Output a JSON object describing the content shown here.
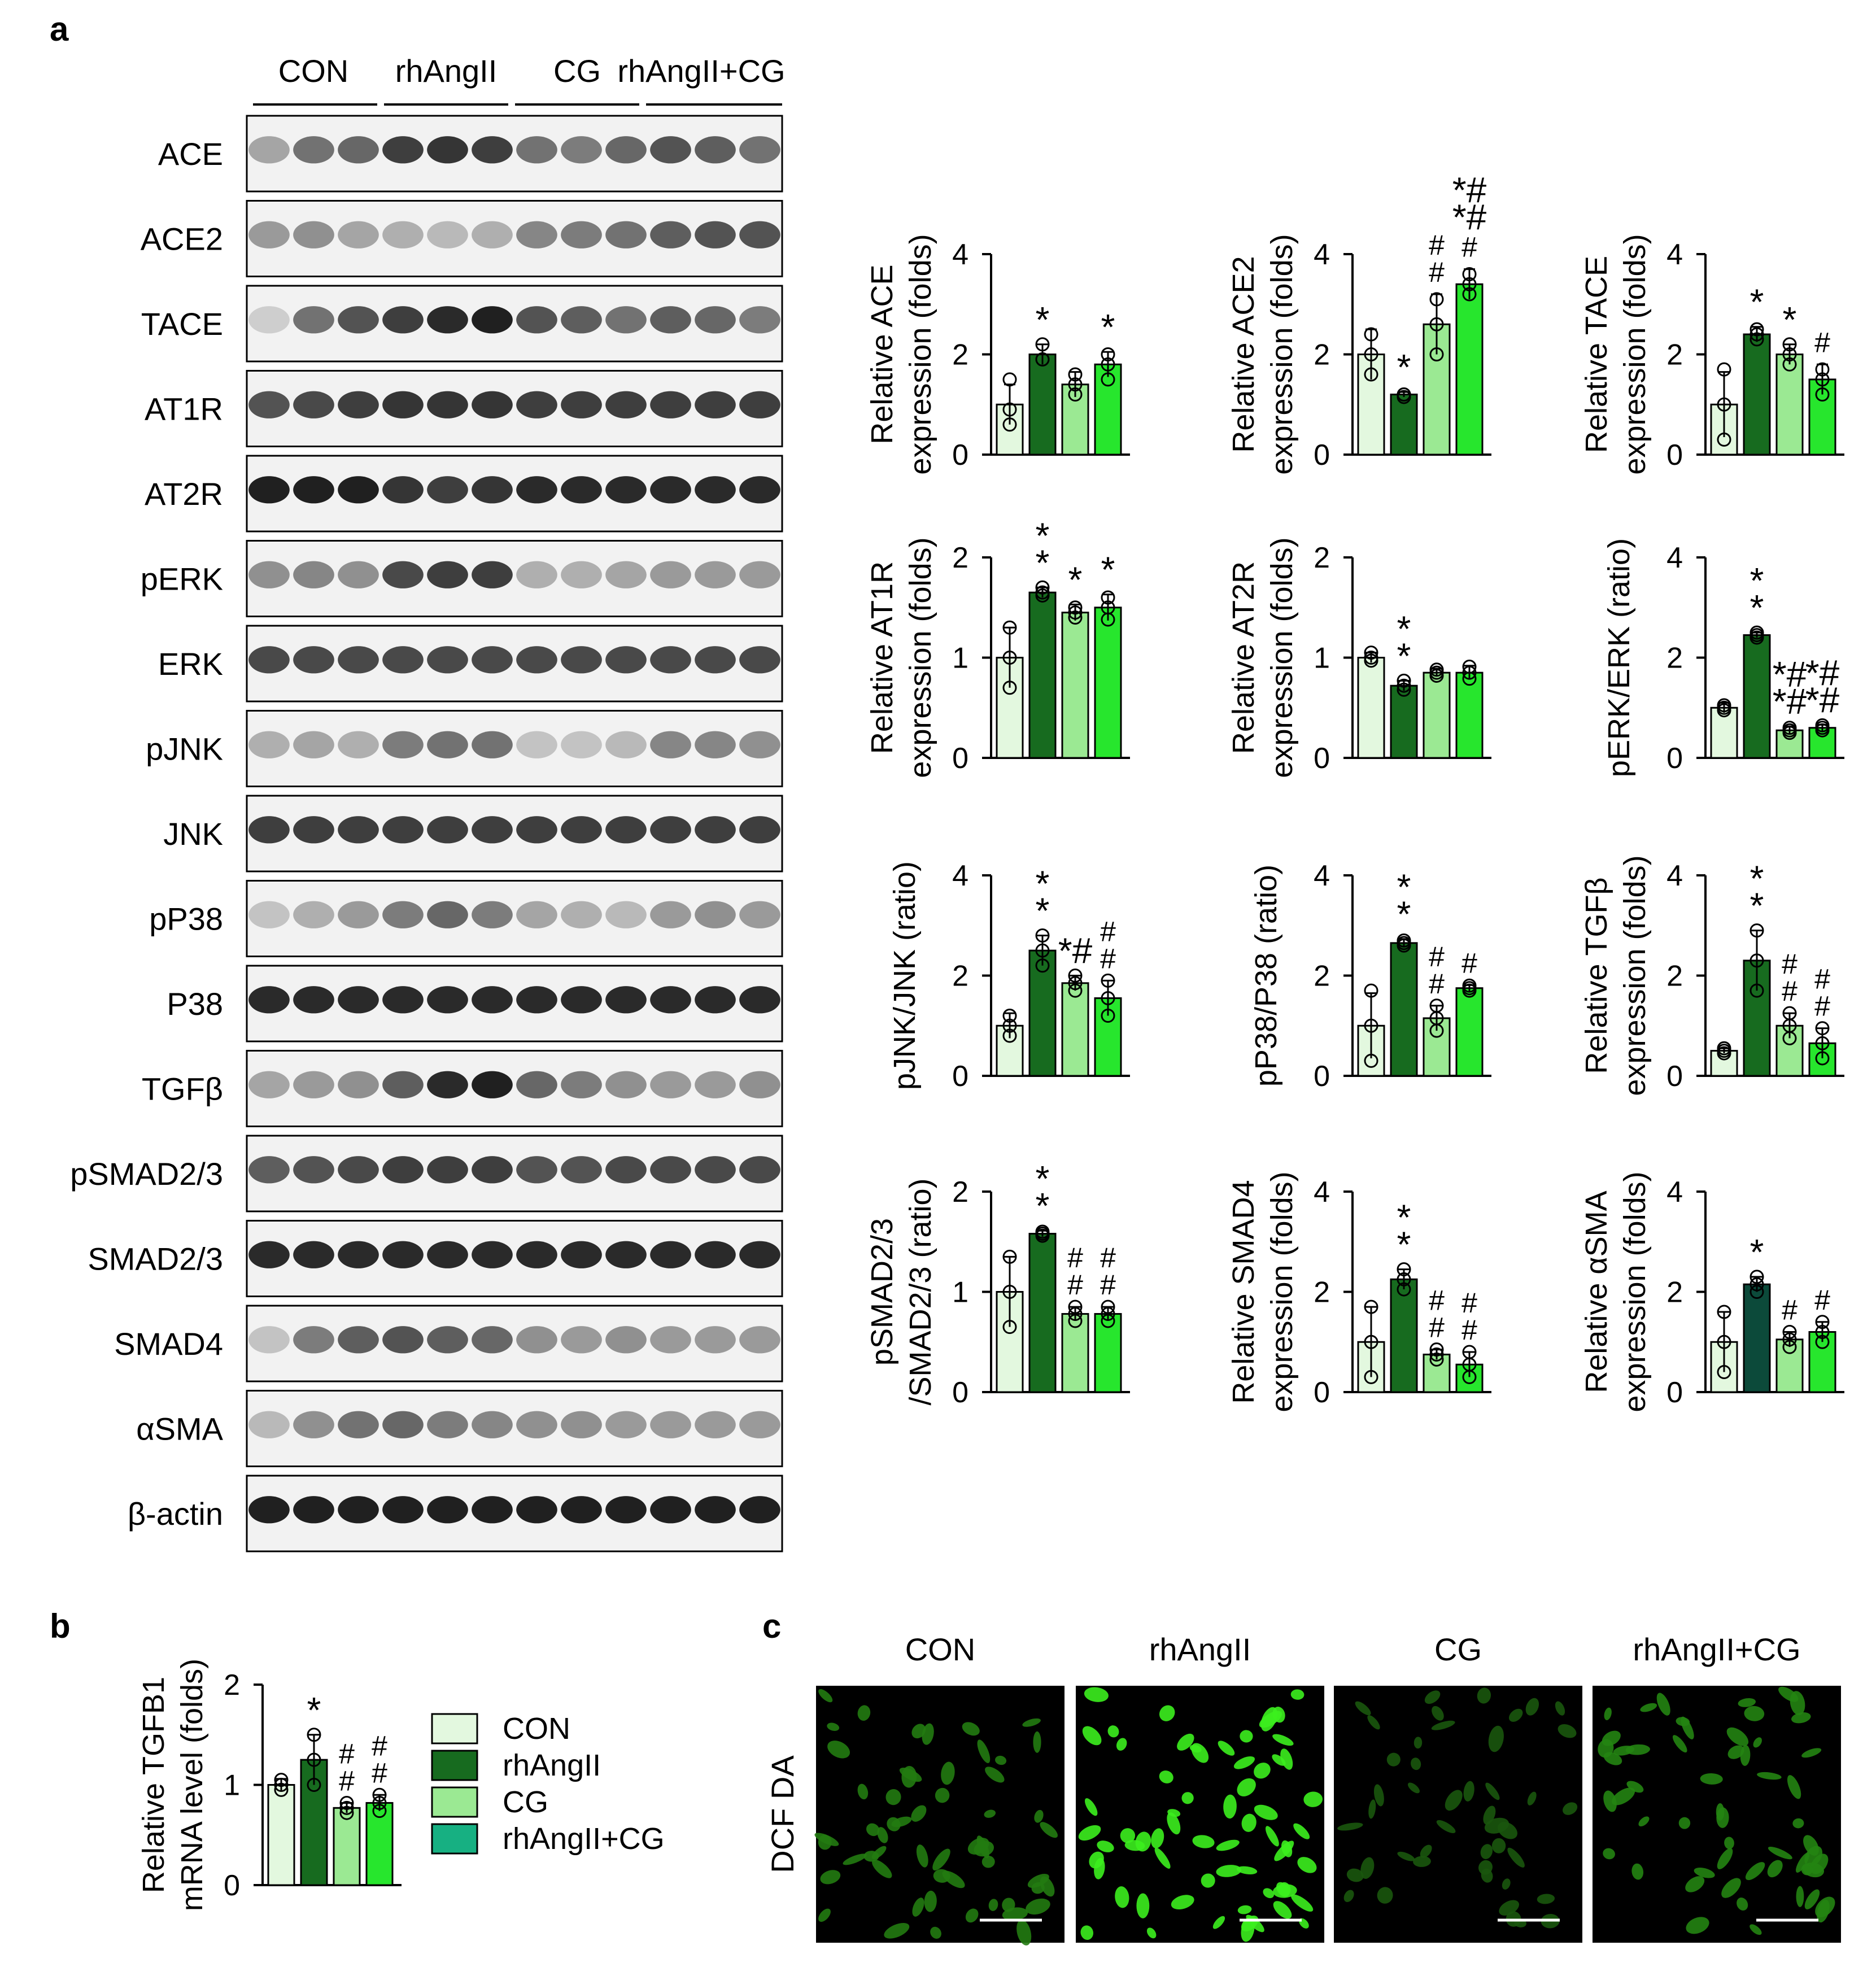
{
  "panel_labels": {
    "a": "a",
    "b": "b",
    "c": "c"
  },
  "groups": [
    "CON",
    "rhAngII",
    "CG",
    "rhAngII+CG"
  ],
  "colors": {
    "CON": "#e3f8df",
    "rhAngII": "#176b1f",
    "CG": "#9be993",
    "rhAngII+CG": "#27e62d",
    "legend_rhAngII_CG": "#17b082",
    "aSMA_rhAngII": "#0c4a3a",
    "fluorescence": "#2fdc22"
  },
  "blot": {
    "lane_group_labels": [
      "CON",
      "rhAngII",
      "CG",
      "rhAngII+CG"
    ],
    "rows": [
      {
        "label": "ACE",
        "intensity": [
          0.35,
          0.6,
          0.65,
          0.85,
          0.9,
          0.85,
          0.6,
          0.55,
          0.65,
          0.75,
          0.7,
          0.6
        ]
      },
      {
        "label": "ACE2",
        "intensity": [
          0.4,
          0.45,
          0.35,
          0.3,
          0.25,
          0.3,
          0.5,
          0.55,
          0.6,
          0.7,
          0.75,
          0.75
        ]
      },
      {
        "label": "TACE",
        "intensity": [
          0.15,
          0.6,
          0.75,
          0.85,
          0.95,
          1.0,
          0.75,
          0.7,
          0.6,
          0.7,
          0.65,
          0.55
        ]
      },
      {
        "label": "AT1R",
        "intensity": [
          0.75,
          0.8,
          0.85,
          0.9,
          0.9,
          0.9,
          0.85,
          0.85,
          0.85,
          0.85,
          0.85,
          0.85
        ]
      },
      {
        "label": "AT2R",
        "intensity": [
          1.0,
          1.0,
          1.0,
          0.9,
          0.85,
          0.9,
          0.95,
          0.95,
          0.95,
          0.95,
          0.95,
          0.95
        ]
      },
      {
        "label": "pERK",
        "intensity": [
          0.45,
          0.5,
          0.45,
          0.8,
          0.85,
          0.85,
          0.3,
          0.3,
          0.35,
          0.4,
          0.4,
          0.4
        ]
      },
      {
        "label": "ERK",
        "intensity": [
          0.8,
          0.8,
          0.8,
          0.8,
          0.8,
          0.8,
          0.8,
          0.8,
          0.8,
          0.8,
          0.8,
          0.8
        ]
      },
      {
        "label": "pJNK",
        "intensity": [
          0.3,
          0.35,
          0.3,
          0.55,
          0.6,
          0.6,
          0.2,
          0.2,
          0.25,
          0.5,
          0.5,
          0.45
        ]
      },
      {
        "label": "JNK",
        "intensity": [
          0.85,
          0.85,
          0.85,
          0.85,
          0.85,
          0.85,
          0.85,
          0.85,
          0.85,
          0.85,
          0.85,
          0.85
        ]
      },
      {
        "label": "pP38",
        "intensity": [
          0.2,
          0.3,
          0.4,
          0.55,
          0.65,
          0.55,
          0.35,
          0.3,
          0.25,
          0.4,
          0.45,
          0.4
        ]
      },
      {
        "label": "P38",
        "intensity": [
          0.95,
          0.95,
          0.95,
          0.95,
          0.95,
          0.95,
          0.95,
          0.95,
          0.95,
          0.95,
          0.95,
          0.95
        ]
      },
      {
        "label": "TGFβ",
        "intensity": [
          0.35,
          0.4,
          0.45,
          0.7,
          0.95,
          1.0,
          0.65,
          0.55,
          0.45,
          0.4,
          0.4,
          0.45
        ]
      },
      {
        "label": "pSMAD2/3",
        "intensity": [
          0.7,
          0.75,
          0.8,
          0.85,
          0.85,
          0.85,
          0.75,
          0.75,
          0.8,
          0.8,
          0.8,
          0.8
        ]
      },
      {
        "label": "SMAD2/3",
        "intensity": [
          0.95,
          0.95,
          0.95,
          0.95,
          0.95,
          0.95,
          0.95,
          0.95,
          0.95,
          0.95,
          0.95,
          0.95
        ]
      },
      {
        "label": "SMAD4",
        "intensity": [
          0.2,
          0.55,
          0.7,
          0.75,
          0.7,
          0.65,
          0.45,
          0.4,
          0.45,
          0.4,
          0.4,
          0.4
        ]
      },
      {
        "label": "αSMA",
        "intensity": [
          0.25,
          0.45,
          0.6,
          0.65,
          0.55,
          0.5,
          0.45,
          0.45,
          0.4,
          0.4,
          0.4,
          0.4
        ]
      },
      {
        "label": "β-actin",
        "intensity": [
          1.0,
          1.0,
          1.0,
          1.0,
          1.0,
          1.0,
          1.0,
          1.0,
          1.0,
          1.0,
          1.0,
          1.0
        ]
      }
    ]
  },
  "chart_data": [
    {
      "type": "bar",
      "ylabel": [
        "Relative ACE",
        "expression (folds)"
      ],
      "ylim": [
        0,
        4
      ],
      "yticks": [
        0,
        2,
        4
      ],
      "categories": [
        "CON",
        "rhAngII",
        "CG",
        "rhAngII+CG"
      ],
      "values": [
        1.0,
        2.0,
        1.4,
        1.8
      ],
      "errors": [
        0.4,
        0.2,
        0.25,
        0.25
      ],
      "points": [
        [
          1.5,
          0.6,
          0.9
        ],
        [
          2.2,
          1.9,
          1.9
        ],
        [
          1.6,
          1.2,
          1.4
        ],
        [
          2.0,
          1.5,
          1.8
        ]
      ],
      "annotations": [
        [
          "",
          "*",
          "",
          "*"
        ]
      ]
    },
    {
      "type": "bar",
      "ylabel": [
        "Relative ACE2",
        "expression (folds)"
      ],
      "ylim": [
        0,
        4
      ],
      "yticks": [
        0,
        2,
        4
      ],
      "categories": [
        "CON",
        "rhAngII",
        "CG",
        "rhAngII+CG"
      ],
      "values": [
        2.0,
        1.2,
        2.6,
        3.4
      ],
      "errors": [
        0.5,
        0.05,
        0.6,
        0.3
      ],
      "points": [
        [
          2.4,
          1.6,
          2.0
        ],
        [
          1.2,
          1.15,
          1.2
        ],
        [
          3.1,
          2.0,
          2.6
        ],
        [
          3.6,
          3.2,
          3.4
        ]
      ],
      "annotations": [
        [
          "",
          "*",
          "#",
          "#"
        ],
        [
          "",
          "",
          "#",
          "*#"
        ],
        [
          "",
          "",
          "",
          "*#"
        ]
      ]
    },
    {
      "type": "bar",
      "ylabel": [
        "Relative TACE",
        "expression (folds)"
      ],
      "ylim": [
        0,
        4
      ],
      "yticks": [
        0,
        2,
        4
      ],
      "categories": [
        "CON",
        "rhAngII",
        "CG",
        "rhAngII+CG"
      ],
      "values": [
        1.0,
        2.4,
        2.0,
        1.5
      ],
      "errors": [
        0.65,
        0.15,
        0.2,
        0.3
      ],
      "points": [
        [
          1.7,
          0.3,
          1.0
        ],
        [
          2.5,
          2.3,
          2.4
        ],
        [
          2.2,
          1.8,
          2.0
        ],
        [
          1.7,
          1.2,
          1.5
        ]
      ],
      "annotations": [
        [
          "",
          "*",
          "*",
          "#"
        ]
      ]
    },
    {
      "type": "bar",
      "ylabel": [
        "Relative AT1R",
        "expression (folds)"
      ],
      "ylim": [
        0,
        2
      ],
      "yticks": [
        0,
        1,
        2
      ],
      "categories": [
        "CON",
        "rhAngII",
        "CG",
        "rhAngII+CG"
      ],
      "values": [
        1.0,
        1.65,
        1.45,
        1.5
      ],
      "errors": [
        0.3,
        0.05,
        0.08,
        0.13
      ],
      "points": [
        [
          1.3,
          0.7,
          1.0
        ],
        [
          1.7,
          1.62,
          1.65
        ],
        [
          1.5,
          1.4,
          1.45
        ],
        [
          1.6,
          1.38,
          1.5
        ]
      ],
      "annotations": [
        [
          "",
          "*",
          "*",
          "*"
        ],
        [
          "",
          "*",
          "",
          ""
        ]
      ]
    },
    {
      "type": "bar",
      "ylabel": [
        "Relative AT2R",
        "expression (folds)"
      ],
      "ylim": [
        0,
        2
      ],
      "yticks": [
        0,
        1,
        2
      ],
      "categories": [
        "CON",
        "rhAngII",
        "CG",
        "rhAngII+CG"
      ],
      "values": [
        1.0,
        0.72,
        0.85,
        0.85
      ],
      "errors": [
        0.05,
        0.05,
        0.04,
        0.07
      ],
      "points": [
        [
          1.05,
          0.97,
          1.0
        ],
        [
          0.77,
          0.68,
          0.72
        ],
        [
          0.88,
          0.82,
          0.85
        ],
        [
          0.91,
          0.79,
          0.85
        ]
      ],
      "annotations": [
        [
          "",
          "*",
          "",
          ""
        ],
        [
          "",
          "*",
          "",
          ""
        ]
      ]
    },
    {
      "type": "bar",
      "ylabel": [
        "pERK/ERK (ratio)"
      ],
      "ylim": [
        0,
        4
      ],
      "yticks": [
        0,
        2,
        4
      ],
      "categories": [
        "CON",
        "rhAngII",
        "CG",
        "rhAngII+CG"
      ],
      "values": [
        1.0,
        2.45,
        0.55,
        0.6
      ],
      "errors": [
        0.1,
        0.05,
        0.08,
        0.06
      ],
      "points": [
        [
          1.05,
          0.95,
          1.0
        ],
        [
          2.5,
          2.4,
          2.45
        ],
        [
          0.6,
          0.5,
          0.55
        ],
        [
          0.65,
          0.55,
          0.6
        ]
      ],
      "annotations": [
        [
          "",
          "*",
          "*#",
          "*#"
        ],
        [
          "",
          "*",
          "*#",
          "*#"
        ]
      ]
    },
    {
      "type": "bar",
      "ylabel": [
        "pJNK/JNK (ratio)"
      ],
      "ylim": [
        0,
        4
      ],
      "yticks": [
        0,
        2,
        4
      ],
      "categories": [
        "CON",
        "rhAngII",
        "CG",
        "rhAngII+CG"
      ],
      "values": [
        1.0,
        2.5,
        1.85,
        1.55
      ],
      "errors": [
        0.25,
        0.3,
        0.15,
        0.35
      ],
      "points": [
        [
          1.2,
          0.8,
          1.0
        ],
        [
          2.8,
          2.2,
          2.5
        ],
        [
          2.0,
          1.7,
          1.85
        ],
        [
          1.9,
          1.2,
          1.55
        ]
      ],
      "annotations": [
        [
          "",
          "*",
          "*#",
          "#"
        ],
        [
          "",
          "*",
          "",
          "#"
        ]
      ]
    },
    {
      "type": "bar",
      "ylabel": [
        "pP38/P38 (ratio)"
      ],
      "ylim": [
        0,
        4
      ],
      "yticks": [
        0,
        2,
        4
      ],
      "categories": [
        "CON",
        "rhAngII",
        "CG",
        "rhAngII+CG"
      ],
      "values": [
        1.0,
        2.65,
        1.15,
        1.75
      ],
      "errors": [
        0.65,
        0.08,
        0.25,
        0.06
      ],
      "points": [
        [
          1.7,
          0.3,
          1.0
        ],
        [
          2.7,
          2.6,
          2.65
        ],
        [
          1.4,
          0.9,
          1.15
        ],
        [
          1.8,
          1.7,
          1.75
        ]
      ],
      "annotations": [
        [
          "",
          "*",
          "#",
          "#"
        ],
        [
          "",
          "*",
          "#",
          ""
        ]
      ]
    },
    {
      "type": "bar",
      "ylabel": [
        "Relative TGFβ",
        "expression (folds)"
      ],
      "ylim": [
        0,
        4
      ],
      "yticks": [
        0,
        2,
        4
      ],
      "categories": [
        "CON",
        "rhAngII",
        "CG",
        "rhAngII+CG"
      ],
      "values": [
        0.5,
        2.3,
        1.0,
        0.65
      ],
      "errors": [
        0.05,
        0.6,
        0.25,
        0.3
      ],
      "points": [
        [
          0.55,
          0.45,
          0.5
        ],
        [
          2.9,
          1.7,
          2.3
        ],
        [
          1.25,
          0.75,
          1.0
        ],
        [
          0.95,
          0.35,
          0.65
        ]
      ],
      "annotations": [
        [
          "",
          "*",
          "#",
          "#"
        ],
        [
          "",
          "*",
          "#",
          "#"
        ]
      ]
    },
    {
      "type": "bar",
      "ylabel": [
        "pSMAD2/3",
        "/SMAD2/3 (ratio)"
      ],
      "ylim": [
        0,
        2
      ],
      "yticks": [
        0,
        1,
        2
      ],
      "categories": [
        "CON",
        "rhAngII",
        "CG",
        "rhAngII+CG"
      ],
      "values": [
        1.0,
        1.58,
        0.78,
        0.78
      ],
      "errors": [
        0.35,
        0.03,
        0.07,
        0.07
      ],
      "points": [
        [
          1.35,
          0.65,
          1.0
        ],
        [
          1.6,
          1.56,
          1.58
        ],
        [
          0.85,
          0.71,
          0.78
        ],
        [
          0.85,
          0.71,
          0.78
        ]
      ],
      "annotations": [
        [
          "",
          "*",
          "#",
          "#"
        ],
        [
          "",
          "*",
          "#",
          "#"
        ]
      ]
    },
    {
      "type": "bar",
      "ylabel": [
        "Relative SMAD4",
        "expression (folds)"
      ],
      "ylim": [
        0,
        4
      ],
      "yticks": [
        0,
        2,
        4
      ],
      "categories": [
        "CON",
        "rhAngII",
        "CG",
        "rhAngII+CG"
      ],
      "values": [
        1.0,
        2.25,
        0.75,
        0.55
      ],
      "errors": [
        0.7,
        0.2,
        0.1,
        0.25
      ],
      "points": [
        [
          1.7,
          0.3,
          1.0
        ],
        [
          2.45,
          2.05,
          2.25
        ],
        [
          0.85,
          0.65,
          0.75
        ],
        [
          0.8,
          0.3,
          0.55
        ]
      ],
      "annotations": [
        [
          "",
          "*",
          "#",
          "#"
        ],
        [
          "",
          "*",
          "#",
          "#"
        ]
      ]
    },
    {
      "type": "bar",
      "ylabel": [
        "Relative αSMA",
        "expression (folds)"
      ],
      "ylim": [
        0,
        4
      ],
      "yticks": [
        0,
        2,
        4
      ],
      "categories": [
        "CON",
        "rhAngII",
        "CG",
        "rhAngII+CG"
      ],
      "values": [
        1.0,
        2.15,
        1.05,
        1.2
      ],
      "errors": [
        0.6,
        0.15,
        0.15,
        0.2
      ],
      "points": [
        [
          1.6,
          0.4,
          1.0
        ],
        [
          2.3,
          2.0,
          2.15
        ],
        [
          1.2,
          0.9,
          1.05
        ],
        [
          1.4,
          1.0,
          1.2
        ]
      ],
      "annotations": [
        [
          "",
          "*",
          "#",
          "#"
        ]
      ]
    },
    {
      "type": "bar",
      "ylabel": [
        "Relative TGFB1",
        "mRNA level (folds)"
      ],
      "ylim": [
        0,
        2
      ],
      "yticks": [
        0,
        1,
        2
      ],
      "categories": [
        "CON",
        "rhAngII",
        "CG",
        "rhAngII+CG"
      ],
      "values": [
        1.0,
        1.25,
        0.77,
        0.82
      ],
      "errors": [
        0.06,
        0.25,
        0.05,
        0.08
      ],
      "points": [
        [
          1.05,
          0.95,
          1.0
        ],
        [
          1.5,
          1.0,
          1.25
        ],
        [
          0.82,
          0.72,
          0.77
        ],
        [
          0.9,
          0.74,
          0.82
        ]
      ],
      "annotations": [
        [
          "",
          "*",
          "#",
          "#"
        ],
        [
          "",
          "",
          "#",
          "#"
        ]
      ]
    }
  ],
  "legend": [
    "CON",
    "rhAngII",
    "CG",
    "rhAngII+CG"
  ],
  "panel_c": {
    "column_labels": [
      "CON",
      "rhAngII",
      "CG",
      "rhAngII+CG"
    ],
    "row_label": "DCF DA",
    "cell_brightness": [
      0.35,
      1.0,
      0.15,
      0.4
    ],
    "cell_counts": [
      55,
      65,
      45,
      55
    ]
  }
}
